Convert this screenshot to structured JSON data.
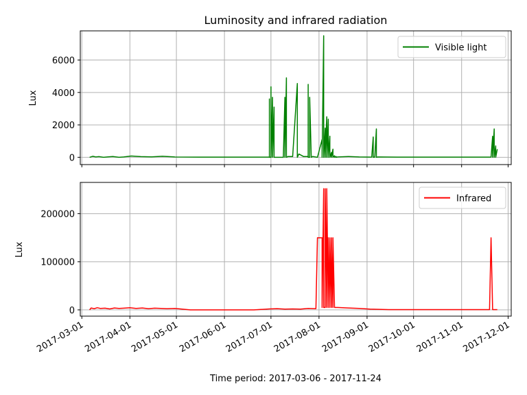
{
  "chart_data": [
    {
      "type": "line",
      "title": "Luminosity and infrared radiation",
      "ylabel": "Lux",
      "xlabel": "",
      "ylim": [
        -450,
        7800
      ],
      "yticks": [
        0,
        2000,
        4000,
        6000
      ],
      "xlim": [
        "2017-02-28",
        "2017-12-03"
      ],
      "grid": true,
      "legend_position": "upper right",
      "series": [
        {
          "name": "Visible light",
          "color": "#008000",
          "x": [
            "2017-03-06",
            "2017-03-08",
            "2017-03-10",
            "2017-03-12",
            "2017-03-15",
            "2017-03-18",
            "2017-03-21",
            "2017-03-25",
            "2017-03-28",
            "2017-04-02",
            "2017-04-08",
            "2017-04-15",
            "2017-04-22",
            "2017-04-30",
            "2017-05-15",
            "2017-06-01",
            "2017-06-15",
            "2017-06-30",
            "2017-06-30",
            "2017-06-30",
            "2017-07-01",
            "2017-07-01",
            "2017-07-01",
            "2017-07-02",
            "2017-07-02",
            "2017-07-03",
            "2017-07-03",
            "2017-07-03",
            "2017-07-04",
            "2017-07-04",
            "2017-07-04",
            "2017-07-05",
            "2017-07-09",
            "2017-07-10",
            "2017-07-10",
            "2017-07-10",
            "2017-07-11",
            "2017-07-11",
            "2017-07-11",
            "2017-07-12",
            "2017-07-15",
            "2017-07-18",
            "2017-07-18",
            "2017-07-18",
            "2017-07-19",
            "2017-07-22",
            "2017-07-25",
            "2017-07-25",
            "2017-07-25",
            "2017-07-26",
            "2017-07-26",
            "2017-07-27",
            "2017-07-27",
            "2017-07-27",
            "2017-07-28",
            "2017-07-31",
            "2017-08-03",
            "2017-08-03",
            "2017-08-03",
            "2017-08-04",
            "2017-08-04",
            "2017-08-04",
            "2017-08-05",
            "2017-08-05",
            "2017-08-05",
            "2017-08-06",
            "2017-08-06",
            "2017-08-06",
            "2017-08-07",
            "2017-08-07",
            "2017-08-07",
            "2017-08-08",
            "2017-08-08",
            "2017-08-08",
            "2017-08-09",
            "2017-08-09",
            "2017-08-09",
            "2017-08-10",
            "2017-08-10",
            "2017-08-10",
            "2017-08-11",
            "2017-08-11",
            "2017-08-11",
            "2017-08-12",
            "2017-08-12",
            "2017-08-12",
            "2017-08-13",
            "2017-08-20",
            "2017-08-27",
            "2017-09-04",
            "2017-09-05",
            "2017-09-05",
            "2017-09-05",
            "2017-09-06",
            "2017-09-07",
            "2017-09-07",
            "2017-09-07",
            "2017-09-08",
            "2017-09-20",
            "2017-10-10",
            "2017-11-01",
            "2017-11-20",
            "2017-11-21",
            "2017-11-21",
            "2017-11-21",
            "2017-11-22",
            "2017-11-22",
            "2017-11-22",
            "2017-11-23",
            "2017-11-23",
            "2017-11-23",
            "2017-11-24"
          ],
          "y": [
            0,
            60,
            20,
            40,
            0,
            30,
            50,
            0,
            20,
            80,
            40,
            30,
            60,
            20,
            10,
            10,
            10,
            10,
            3600,
            0,
            0,
            4350,
            0,
            3700,
            0,
            3100,
            0,
            0,
            0,
            0,
            0,
            0,
            0,
            3700,
            0,
            0,
            4900,
            0,
            0,
            50,
            50,
            4550,
            0,
            0,
            200,
            50,
            50,
            4500,
            0,
            0,
            3700,
            0,
            0,
            0,
            50,
            0,
            1100,
            0,
            0,
            7500,
            0,
            0,
            1800,
            0,
            0,
            2500,
            0,
            0,
            2350,
            0,
            0,
            1300,
            0,
            0,
            300,
            0,
            0,
            500,
            0,
            0,
            100,
            0,
            0,
            50,
            0,
            0,
            20,
            50,
            20,
            10,
            1250,
            0,
            0,
            10,
            1750,
            0,
            0,
            20,
            10,
            10,
            10,
            10,
            1300,
            0,
            0,
            1750,
            0,
            0,
            700,
            0,
            0,
            500
          ]
        }
      ]
    },
    {
      "type": "line",
      "title": "",
      "ylabel": "Lux",
      "xlabel": "Time period: 2017-03-06 - 2017-11-24",
      "ylim": [
        -13000,
        265000
      ],
      "yticks": [
        0,
        100000,
        200000
      ],
      "xlim": [
        "2017-02-28",
        "2017-12-03"
      ],
      "xticks": [
        "2017-03-01",
        "2017-04-01",
        "2017-05-01",
        "2017-06-01",
        "2017-07-01",
        "2017-08-01",
        "2017-09-01",
        "2017-10-01",
        "2017-11-01",
        "2017-12-01"
      ],
      "grid": true,
      "legend_position": "upper right",
      "series": [
        {
          "name": "Infrared",
          "color": "#ff0000",
          "x": [
            "2017-03-06",
            "2017-03-07",
            "2017-03-09",
            "2017-03-11",
            "2017-03-13",
            "2017-03-16",
            "2017-03-19",
            "2017-03-22",
            "2017-03-25",
            "2017-03-28",
            "2017-04-01",
            "2017-04-05",
            "2017-04-09",
            "2017-04-13",
            "2017-04-17",
            "2017-04-21",
            "2017-04-25",
            "2017-04-30",
            "2017-05-10",
            "2017-06-01",
            "2017-06-20",
            "2017-06-30",
            "2017-07-05",
            "2017-07-10",
            "2017-07-15",
            "2017-07-20",
            "2017-07-25",
            "2017-07-30",
            "2017-07-31",
            "2017-08-03",
            "2017-08-03",
            "2017-08-04",
            "2017-08-04",
            "2017-08-05",
            "2017-08-05",
            "2017-08-06",
            "2017-08-06",
            "2017-08-07",
            "2017-08-07",
            "2017-08-08",
            "2017-08-08",
            "2017-08-09",
            "2017-08-09",
            "2017-08-10",
            "2017-08-10",
            "2017-08-11",
            "2017-08-11",
            "2017-08-12",
            "2017-08-12",
            "2017-08-13",
            "2017-08-20",
            "2017-08-27",
            "2017-09-03",
            "2017-09-15",
            "2017-10-01",
            "2017-10-20",
            "2017-11-10",
            "2017-11-19",
            "2017-11-20",
            "2017-11-21",
            "2017-11-22",
            "2017-11-24"
          ],
          "y": [
            0,
            4000,
            2500,
            4500,
            3000,
            3500,
            2000,
            4000,
            3000,
            3500,
            4500,
            3000,
            4000,
            2500,
            3500,
            3000,
            2500,
            3000,
            0,
            0,
            0,
            2000,
            2500,
            1500,
            2000,
            1500,
            3000,
            2500,
            150000,
            150000,
            5000,
            252000,
            5000,
            5000,
            252000,
            5000,
            252000,
            5000,
            150000,
            5000,
            150000,
            5000,
            150000,
            5000,
            150000,
            5000,
            5000,
            5000,
            5000,
            5000,
            4000,
            3000,
            1500,
            500,
            500,
            500,
            500,
            500,
            150000,
            500,
            500,
            500
          ]
        }
      ]
    }
  ]
}
